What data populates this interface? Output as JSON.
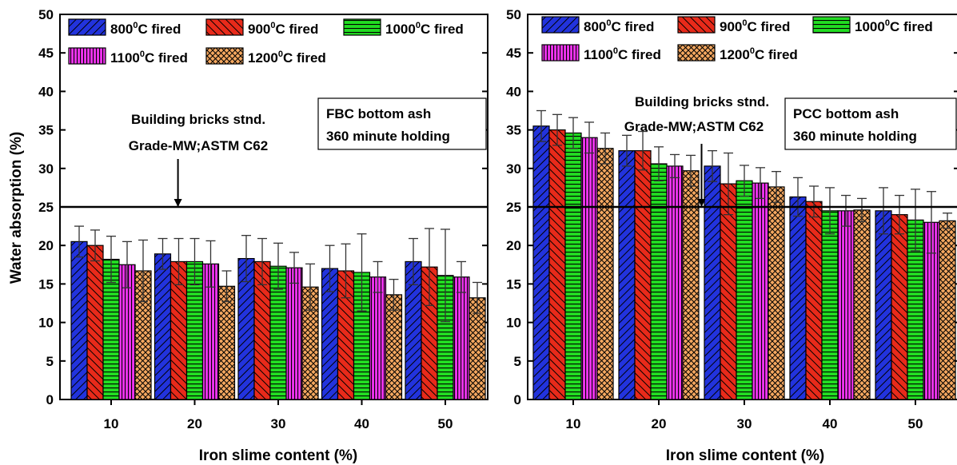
{
  "colors": {
    "s800": "#2233dd",
    "s900": "#e82a1a",
    "s1000": "#22dd22",
    "s1100": "#ee33ee",
    "s1200": "#f5a860",
    "errorbar": "#333333"
  },
  "chart_data": [
    {
      "type": "bar",
      "ylabel": "Water absorption (%)",
      "xlabel": "Iron slime content (%)",
      "categories": [
        "10",
        "20",
        "30",
        "40",
        "50"
      ],
      "ylim": [
        0,
        50
      ],
      "yticks": [
        "0",
        "5",
        "10",
        "15",
        "20",
        "25",
        "30",
        "35",
        "40",
        "45",
        "50"
      ],
      "legend": {
        "row1": [
          "800",
          "900",
          "1000"
        ],
        "row2": [
          "1100",
          "1200"
        ],
        "suffix": " fired",
        "sup": "0",
        "unit": "C"
      },
      "series": [
        {
          "name": "800°C fired",
          "values": [
            20.5,
            18.9,
            18.3,
            17.0,
            17.9
          ],
          "errors": [
            2.0,
            2.0,
            3.0,
            3.0,
            3.0
          ]
        },
        {
          "name": "900°C fired",
          "values": [
            20.0,
            17.9,
            17.9,
            16.7,
            17.2
          ],
          "errors": [
            2.0,
            3.0,
            3.0,
            3.5,
            5.0
          ]
        },
        {
          "name": "1000°C fired",
          "values": [
            18.2,
            17.9,
            17.3,
            16.5,
            16.1
          ],
          "errors": [
            3.0,
            3.0,
            3.0,
            5.0,
            6.0
          ]
        },
        {
          "name": "1100°C fired",
          "values": [
            17.5,
            17.6,
            17.1,
            15.9,
            15.9
          ],
          "errors": [
            3.0,
            3.0,
            2.0,
            2.0,
            2.0
          ]
        },
        {
          "name": "1200°C fired",
          "values": [
            16.7,
            14.7,
            14.6,
            13.6,
            13.2
          ],
          "errors": [
            4.0,
            2.0,
            3.0,
            2.0,
            2.0
          ]
        }
      ],
      "reference_line": 25,
      "annotation": [
        "Building bricks stnd.",
        "Grade-MW;ASTM C62"
      ],
      "annotation_arrow_x": 1.8,
      "box_text": [
        "FBC bottom ash",
        "360 minute holding"
      ]
    },
    {
      "type": "bar",
      "ylabel": "",
      "xlabel": "Iron slime content (%)",
      "categories": [
        "10",
        "20",
        "30",
        "40",
        "50"
      ],
      "ylim": [
        0,
        50
      ],
      "yticks": [
        "0",
        "5",
        "10",
        "15",
        "20",
        "25",
        "30",
        "35",
        "40",
        "45",
        "50"
      ],
      "legend": {
        "row1": [
          "800",
          "900",
          "1000"
        ],
        "row2": [
          "1100",
          "1200"
        ],
        "suffix": " fired",
        "sup": "0",
        "unit": "C"
      },
      "series": [
        {
          "name": "800°C fired",
          "values": [
            35.5,
            32.3,
            30.3,
            26.3,
            24.5
          ],
          "errors": [
            2.0,
            2.0,
            2.0,
            2.5,
            3.0
          ]
        },
        {
          "name": "900°C fired",
          "values": [
            35.0,
            32.3,
            28.0,
            25.7,
            24.0
          ],
          "errors": [
            2.0,
            2.5,
            4.0,
            2.0,
            2.5
          ]
        },
        {
          "name": "1000°C fired",
          "values": [
            34.6,
            30.6,
            28.4,
            24.5,
            23.3
          ],
          "errors": [
            2.0,
            2.2,
            2.0,
            3.0,
            4.0
          ]
        },
        {
          "name": "1100°C fired",
          "values": [
            34.0,
            30.3,
            28.1,
            24.5,
            23.0
          ],
          "errors": [
            2.0,
            1.5,
            2.0,
            2.0,
            4.0
          ]
        },
        {
          "name": "1200°C fired",
          "values": [
            32.6,
            29.7,
            27.6,
            24.6,
            23.2
          ],
          "errors": [
            2.0,
            2.0,
            2.0,
            1.5,
            1.0
          ]
        }
      ],
      "reference_line": 25,
      "annotation": [
        "Building bricks stnd.",
        "Grade-MW;ASTM C62"
      ],
      "annotation_arrow_x": 2.5,
      "box_text": [
        "PCC bottom ash",
        "360 minute holding"
      ]
    }
  ]
}
